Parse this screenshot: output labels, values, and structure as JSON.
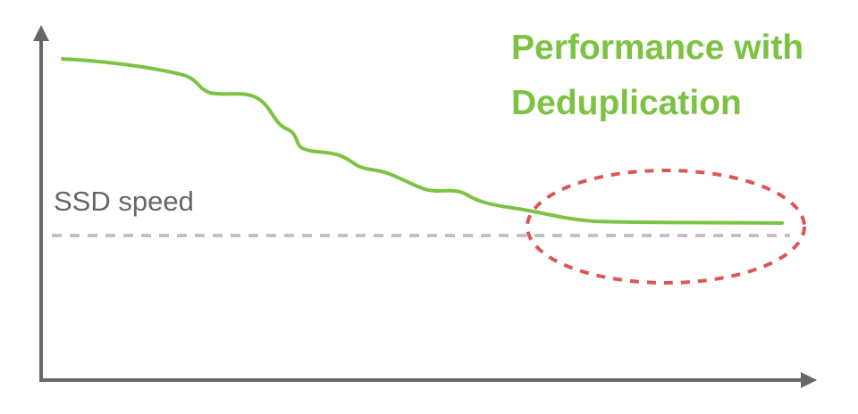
{
  "baseline_label": "SSD speed",
  "title_lines": [
    "Performance with",
    "Deduplication"
  ],
  "colors": {
    "axis": "#666666",
    "performance_curve": "#7cc243",
    "baseline": "#c2c2c2",
    "highlight": "#dd5555",
    "baseline_text": "#666666",
    "title_text": "#7cc243"
  },
  "icons": {
    "y_axis_head": "arrow-up-icon",
    "x_axis_head": "arrow-right-icon"
  }
}
